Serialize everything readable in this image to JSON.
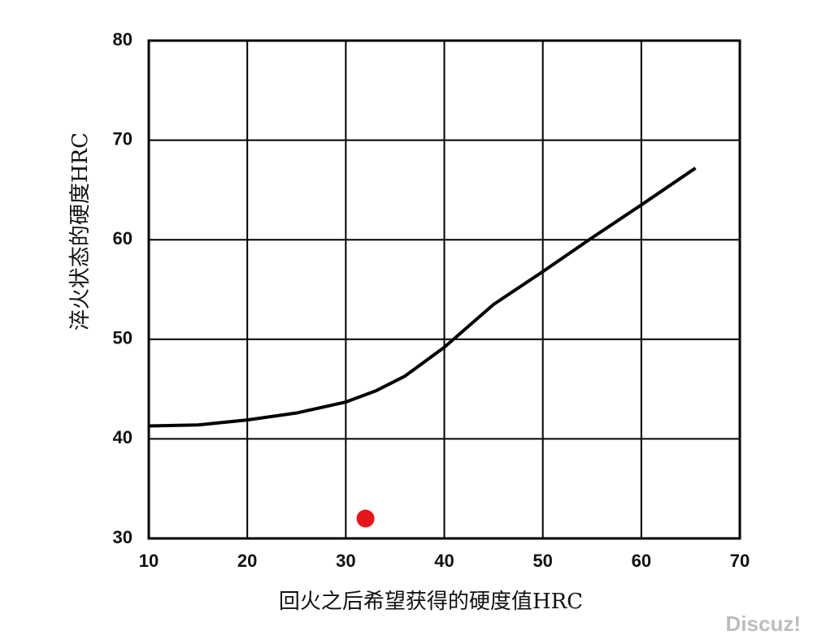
{
  "chart_data": {
    "type": "line",
    "x_label": "回火之后希望获得的硬度值HRC",
    "y_label": "淬火状态的硬度HRC",
    "x": [
      10,
      15,
      20,
      25,
      30,
      33,
      36,
      40,
      45,
      50,
      55,
      60,
      65.5
    ],
    "series": [
      {
        "color": "#000000",
        "values": [
          41.3,
          41.4,
          41.9,
          42.6,
          43.7,
          44.8,
          46.3,
          49.2,
          53.5,
          56.8,
          60.2,
          63.5,
          67.2
        ]
      }
    ],
    "markers": [
      {
        "x": 32,
        "y": 32,
        "color": "#e8141c"
      }
    ],
    "xlim": [
      10,
      70
    ],
    "ylim": [
      30,
      80
    ],
    "xticks": [
      10,
      20,
      30,
      40,
      50,
      60,
      70
    ],
    "yticks": [
      30,
      40,
      50,
      60,
      70,
      80
    ],
    "grid": true,
    "watermark": "Discuz!"
  }
}
